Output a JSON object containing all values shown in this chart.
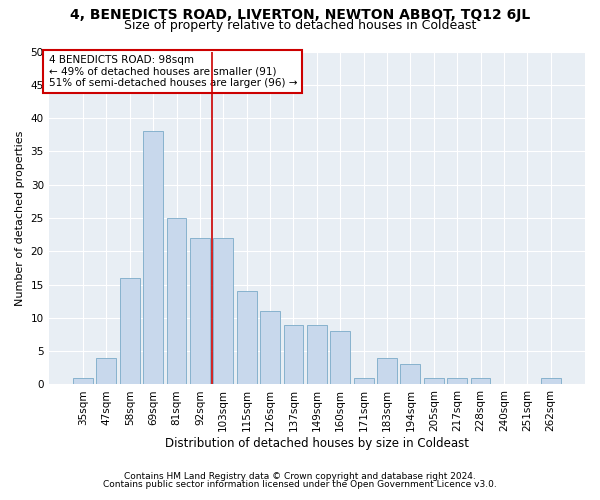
{
  "title1": "4, BENEDICTS ROAD, LIVERTON, NEWTON ABBOT, TQ12 6JL",
  "title2": "Size of property relative to detached houses in Coldeast",
  "xlabel": "Distribution of detached houses by size in Coldeast",
  "ylabel": "Number of detached properties",
  "categories": [
    "35sqm",
    "47sqm",
    "58sqm",
    "69sqm",
    "81sqm",
    "92sqm",
    "103sqm",
    "115sqm",
    "126sqm",
    "137sqm",
    "149sqm",
    "160sqm",
    "171sqm",
    "183sqm",
    "194sqm",
    "205sqm",
    "217sqm",
    "228sqm",
    "240sqm",
    "251sqm",
    "262sqm"
  ],
  "values": [
    1,
    4,
    16,
    38,
    25,
    22,
    22,
    14,
    11,
    9,
    9,
    8,
    1,
    4,
    3,
    1,
    1,
    1,
    0,
    0,
    1
  ],
  "bar_color": "#c8d8ec",
  "bar_edge_color": "#7aaac8",
  "vline_x_idx": 5.5,
  "vline_color": "#cc0000",
  "annotation_box_text": "4 BENEDICTS ROAD: 98sqm\n← 49% of detached houses are smaller (91)\n51% of semi-detached houses are larger (96) →",
  "annotation_box_color": "#ffffff",
  "annotation_box_edge_color": "#cc0000",
  "ylim": [
    0,
    50
  ],
  "yticks": [
    0,
    5,
    10,
    15,
    20,
    25,
    30,
    35,
    40,
    45,
    50
  ],
  "footnote1": "Contains HM Land Registry data © Crown copyright and database right 2024.",
  "footnote2": "Contains public sector information licensed under the Open Government Licence v3.0.",
  "bg_color": "#ffffff",
  "plot_bg_color": "#e8eef4",
  "grid_color": "#ffffff",
  "title1_fontsize": 10,
  "title2_fontsize": 9,
  "xlabel_fontsize": 8.5,
  "ylabel_fontsize": 8,
  "tick_fontsize": 7.5,
  "annotation_fontsize": 7.5,
  "footnote_fontsize": 6.5
}
